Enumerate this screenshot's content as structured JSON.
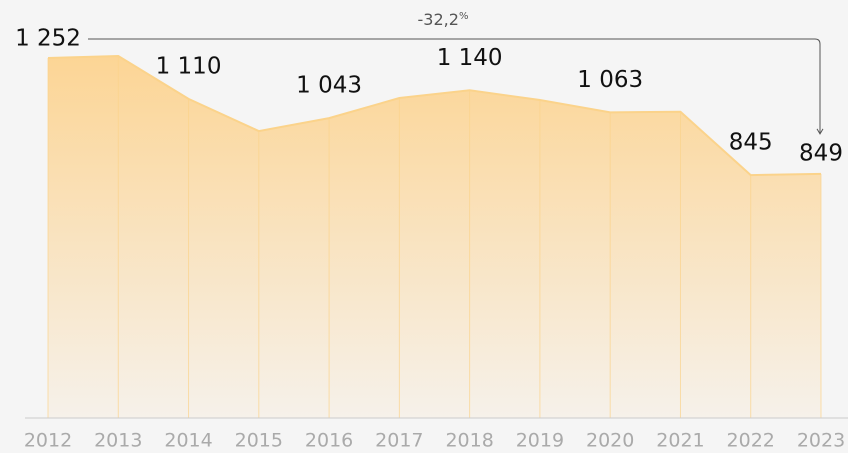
{
  "chart_data": {
    "type": "area",
    "categories": [
      "2012",
      "2013",
      "2014",
      "2015",
      "2016",
      "2017",
      "2018",
      "2019",
      "2020",
      "2021",
      "2022",
      "2023"
    ],
    "values": [
      1252,
      1259,
      1110,
      998,
      1043,
      1113,
      1140,
      1106,
      1063,
      1065,
      845,
      849
    ],
    "value_labels": [
      "1 252",
      null,
      "1 110",
      null,
      "1 043",
      null,
      "1 140",
      null,
      "1 063",
      null,
      "845",
      "849"
    ],
    "color": "#fbd38b",
    "ylim": [
      0,
      1400
    ],
    "annotation": {
      "text": "-32,2",
      "unit": "%"
    }
  }
}
